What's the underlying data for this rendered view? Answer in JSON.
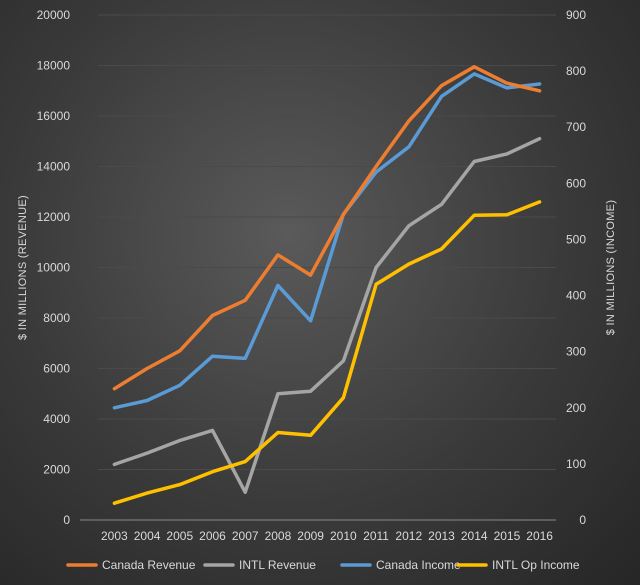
{
  "chart_data": {
    "type": "line",
    "x": [
      "2003",
      "2004",
      "2005",
      "2006",
      "2007",
      "2008",
      "2009",
      "2010",
      "2011",
      "2012",
      "2013",
      "2014",
      "2015",
      "2016"
    ],
    "y_left": {
      "label": "$ IN MILLIONS (REVENUE)",
      "ylim": [
        0,
        20000
      ],
      "ticks": [
        0,
        2000,
        4000,
        6000,
        8000,
        10000,
        12000,
        14000,
        16000,
        18000,
        20000
      ]
    },
    "y_right": {
      "label": "$ IN MILLIONS (INCOME)",
      "ylim": [
        0,
        900
      ],
      "ticks": [
        0,
        100,
        200,
        300,
        400,
        500,
        600,
        700,
        800,
        900
      ]
    },
    "grid": true,
    "legend_position": "bottom",
    "series": [
      {
        "name": "Canada Revenue",
        "axis": "left",
        "color": "#ed7d31",
        "values": [
          5200,
          6000,
          6700,
          8100,
          8700,
          10500,
          9700,
          12100,
          14000,
          15800,
          17200,
          17950,
          17300,
          17000
        ]
      },
      {
        "name": "INTL Revenue",
        "axis": "left",
        "color": "#a5a5a5",
        "values": [
          2200,
          2650,
          3150,
          3550,
          1100,
          5000,
          5100,
          6300,
          10000,
          11650,
          12500,
          14200,
          14500,
          15100
        ]
      },
      {
        "name": "Canada Income",
        "axis": "right",
        "color": "#5b9bd5",
        "values": [
          200,
          213,
          240,
          292,
          288,
          418,
          355,
          545,
          620,
          665,
          755,
          795,
          770,
          777
        ]
      },
      {
        "name": "INTL Op Income",
        "axis": "right",
        "color": "#ffc000",
        "values": [
          30,
          48,
          63,
          86,
          104,
          156,
          151,
          218,
          420,
          456,
          483,
          543,
          544,
          567
        ]
      }
    ]
  }
}
